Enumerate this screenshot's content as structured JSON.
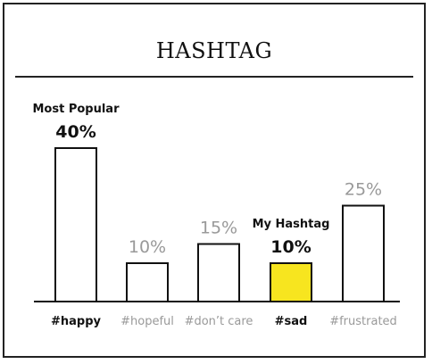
{
  "header": {
    "title": "HASHTAG"
  },
  "chart_data": {
    "type": "bar",
    "title": "HASHTAG",
    "categories": [
      "#happy",
      "#hopeful",
      "#don’t care",
      "#sad",
      "#frustrated"
    ],
    "values": [
      40,
      10,
      15,
      10,
      25
    ],
    "value_labels": [
      "40%",
      "10%",
      "15%",
      "10%",
      "25%"
    ],
    "annotations": [
      {
        "category": "#happy",
        "text": "Most Popular"
      },
      {
        "category": "#sad",
        "text": "My Hashtag"
      }
    ],
    "ylim": [
      0,
      50
    ],
    "grid": false,
    "colors": {
      "emphasis": "#111111",
      "muted": "#999999",
      "highlight_fill": "#f7e51f",
      "default_fill": "#ffffff"
    },
    "emphasized": [
      "#happy",
      "#sad"
    ],
    "highlighted": [
      "#sad"
    ]
  }
}
